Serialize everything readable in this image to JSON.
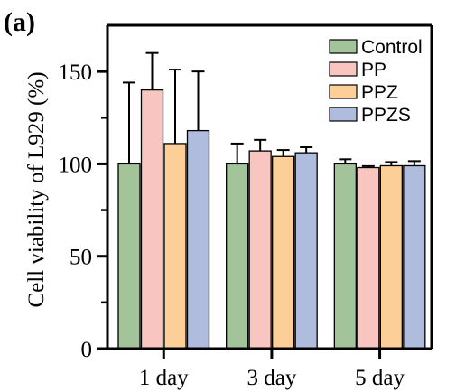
{
  "panel_label": "(a)",
  "chart_data": {
    "type": "bar",
    "title": "",
    "xlabel": "",
    "ylabel": "Cell viability of  L929 (%)",
    "ylim": [
      0,
      175
    ],
    "yticks": [
      0,
      50,
      100,
      150
    ],
    "categories": [
      "1 day",
      "3 day",
      "5 day"
    ],
    "grid": false,
    "legend_position": "top-right",
    "series": [
      {
        "name": "Control",
        "color": "#a3c49b",
        "values": [
          100,
          100,
          100
        ],
        "errors": [
          44,
          11,
          2.5
        ]
      },
      {
        "name": "PP",
        "color": "#f9c5c0",
        "values": [
          140,
          107,
          98
        ],
        "errors": [
          20,
          6,
          0.8
        ]
      },
      {
        "name": "PPZ",
        "color": "#fccf98",
        "values": [
          111,
          104,
          99
        ],
        "errors": [
          40,
          3.5,
          2
        ]
      },
      {
        "name": "PPZS",
        "color": "#b0bcde",
        "values": [
          118,
          106,
          99
        ],
        "errors": [
          32,
          3,
          2.5
        ]
      }
    ]
  }
}
